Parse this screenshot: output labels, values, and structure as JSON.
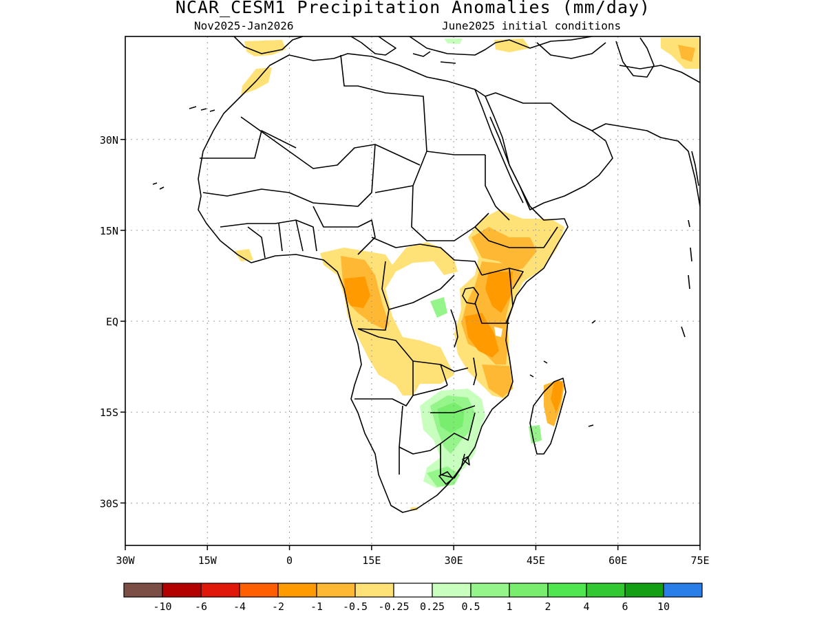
{
  "header": {
    "title": "NCAR_CESM1 Precipitation Anomalies (mm/day)",
    "period": "Nov2025-Jan2026",
    "initial_conditions": "June2025 initial conditions"
  },
  "map": {
    "lon_range": [
      -30,
      75
    ],
    "lat_range": [
      -37,
      47
    ],
    "lon_ticks": [
      {
        "value": -30,
        "label": "30W"
      },
      {
        "value": -15,
        "label": "15W"
      },
      {
        "value": 0,
        "label": "0"
      },
      {
        "value": 15,
        "label": "15E"
      },
      {
        "value": 30,
        "label": "30E"
      },
      {
        "value": 45,
        "label": "45E"
      },
      {
        "value": 60,
        "label": "60E"
      },
      {
        "value": 75,
        "label": "75E"
      }
    ],
    "lat_ticks": [
      {
        "value": 30,
        "label": "30N"
      },
      {
        "value": 15,
        "label": "15N"
      },
      {
        "value": 0,
        "label": "EQ"
      },
      {
        "value": -15,
        "label": "15S"
      },
      {
        "value": -30,
        "label": "30S"
      }
    ],
    "grid": true
  },
  "colorbar": {
    "colors": [
      "#7b4f45",
      "#b30000",
      "#e0180a",
      "#ff5f00",
      "#ff9a00",
      "#ffb833",
      "#ffe277",
      "#ffffff",
      "#c8ffbe",
      "#96f58a",
      "#78ed6e",
      "#50e650",
      "#32c832",
      "#14a014",
      "#2a7ee8"
    ],
    "labels": [
      "-10",
      "-6",
      "-4",
      "-2",
      "-1",
      "-0.5",
      "-0.25",
      "0.25",
      "0.5",
      "1",
      "2",
      "4",
      "6",
      "10"
    ]
  }
}
